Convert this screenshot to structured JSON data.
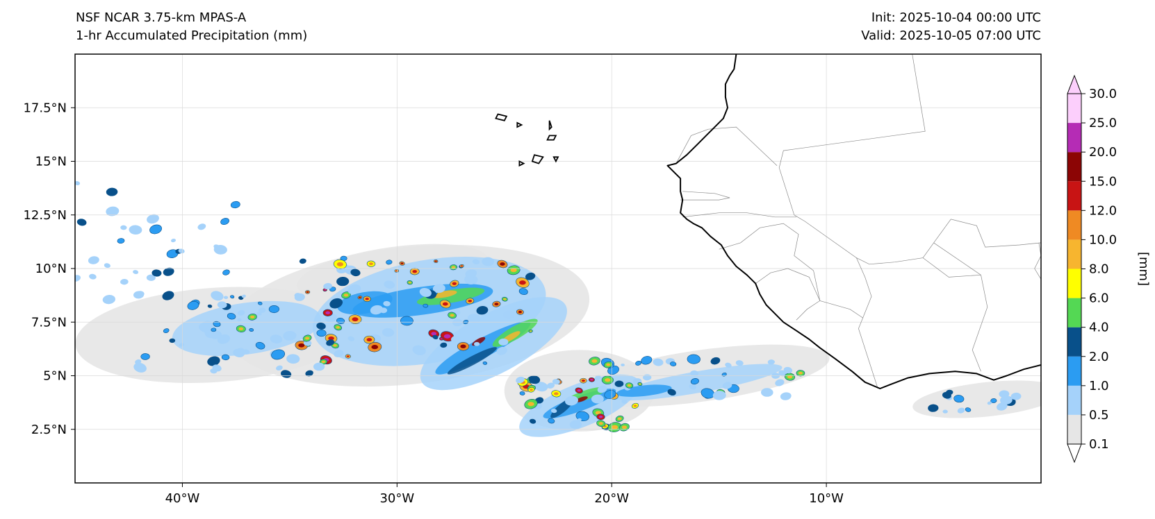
{
  "header": {
    "model": "NSF NCAR 3.75-km MPAS-A",
    "field": "1-hr Accumulated Precipitation (mm)",
    "init": "Init: 2025-10-04 00:00 UTC",
    "valid": "Valid: 2025-10-05 07:00 UTC"
  },
  "map": {
    "lon_range": [
      -45,
      0
    ],
    "lat_range": [
      0,
      20
    ],
    "lon_ticks": [
      {
        "value": -40,
        "label": "40°W"
      },
      {
        "value": -30,
        "label": "30°W"
      },
      {
        "value": -20,
        "label": "20°W"
      },
      {
        "value": -10,
        "label": "10°W"
      }
    ],
    "lat_ticks": [
      {
        "value": 2.5,
        "label": "2.5°N"
      },
      {
        "value": 5,
        "label": "5°N"
      },
      {
        "value": 7.5,
        "label": "7.5°N"
      },
      {
        "value": 10,
        "label": "10°N"
      },
      {
        "value": 12.5,
        "label": "12.5°N"
      },
      {
        "value": 15,
        "label": "15°N"
      },
      {
        "value": 17.5,
        "label": "17.5°N"
      }
    ],
    "coastline": [
      [
        -14.2,
        20
      ],
      [
        -14.3,
        19.3
      ],
      [
        -14.5,
        19
      ],
      [
        -14.7,
        18.6
      ],
      [
        -14.7,
        18
      ],
      [
        -14.6,
        17.5
      ],
      [
        -14.8,
        17
      ],
      [
        -15.2,
        16.6
      ],
      [
        -15.6,
        16.2
      ],
      [
        -16,
        15.8
      ],
      [
        -16.5,
        15.3
      ],
      [
        -17,
        14.9
      ],
      [
        -17.4,
        14.8
      ],
      [
        -17.1,
        14.5
      ],
      [
        -16.8,
        14.2
      ],
      [
        -16.8,
        13.6
      ],
      [
        -16.7,
        13.2
      ],
      [
        -16.8,
        12.6
      ],
      [
        -16.5,
        12.3
      ],
      [
        -16.2,
        12.1
      ],
      [
        -15.8,
        11.9
      ],
      [
        -15.4,
        11.5
      ],
      [
        -14.9,
        11.1
      ],
      [
        -14.6,
        10.6
      ],
      [
        -14.2,
        10.1
      ],
      [
        -13.7,
        9.7
      ],
      [
        -13.3,
        9.3
      ],
      [
        -13.1,
        8.8
      ],
      [
        -12.8,
        8.3
      ],
      [
        -12.4,
        7.9
      ],
      [
        -12,
        7.5
      ],
      [
        -11.4,
        7.1
      ],
      [
        -10.8,
        6.7
      ],
      [
        -10.3,
        6.3
      ],
      [
        -9.6,
        5.8
      ],
      [
        -8.8,
        5.2
      ],
      [
        -8.2,
        4.7
      ],
      [
        -7.5,
        4.4
      ],
      [
        -7,
        4.6
      ],
      [
        -6.2,
        4.9
      ],
      [
        -5.2,
        5.1
      ],
      [
        -4,
        5.2
      ],
      [
        -3,
        5.1
      ],
      [
        -2.2,
        4.8
      ],
      [
        -1.6,
        5
      ],
      [
        -0.8,
        5.3
      ],
      [
        0,
        5.5
      ]
    ],
    "islands": [
      [
        [
          -25.3,
          17.2
        ],
        [
          -24.9,
          17.1
        ],
        [
          -25,
          16.9
        ],
        [
          -25.4,
          17
        ]
      ],
      [
        [
          -24.4,
          16.8
        ],
        [
          -24.2,
          16.7
        ],
        [
          -24.4,
          16.6
        ]
      ],
      [
        [
          -22.9,
          16.9
        ],
        [
          -22.8,
          16.6
        ],
        [
          -22.9,
          16.5
        ]
      ],
      [
        [
          -22.9,
          16.2
        ],
        [
          -22.6,
          16.2
        ],
        [
          -22.7,
          16
        ],
        [
          -23,
          16
        ]
      ],
      [
        [
          -24.3,
          15
        ],
        [
          -24.1,
          14.9
        ],
        [
          -24.3,
          14.8
        ]
      ],
      [
        [
          -23.6,
          15.3
        ],
        [
          -23.2,
          15.2
        ],
        [
          -23.4,
          14.9
        ],
        [
          -23.7,
          15
        ]
      ],
      [
        [
          -22.7,
          15.2
        ],
        [
          -22.5,
          15.2
        ],
        [
          -22.6,
          15
        ]
      ]
    ],
    "borders": [
      [
        [
          -6,
          20
        ],
        [
          -5.4,
          16.4
        ],
        [
          -12,
          15.5
        ],
        [
          -12.2,
          14.7
        ],
        [
          -11.5,
          12.5
        ]
      ],
      [
        [
          -17,
          14.9
        ],
        [
          -16.3,
          16.2
        ],
        [
          -15.5,
          16.5
        ],
        [
          -14.2,
          16.6
        ],
        [
          -12.3,
          14.8
        ]
      ],
      [
        [
          -16.7,
          13.6
        ],
        [
          -15.2,
          13.5
        ],
        [
          -14.5,
          13.3
        ],
        [
          -15,
          13.2
        ],
        [
          -16.8,
          13.2
        ]
      ],
      [
        [
          -16.7,
          12.4
        ],
        [
          -15,
          12.6
        ],
        [
          -13.7,
          12.6
        ],
        [
          -12.4,
          12.4
        ],
        [
          -11.4,
          12.4
        ]
      ],
      [
        [
          -15,
          10.9
        ],
        [
          -14,
          11.2
        ],
        [
          -13.1,
          11.9
        ],
        [
          -12,
          12.1
        ],
        [
          -11.3,
          11.6
        ],
        [
          -11.5,
          10.6
        ],
        [
          -10.6,
          9.9
        ],
        [
          -10.3,
          8.5
        ],
        [
          -10.9,
          8.1
        ],
        [
          -11.4,
          7.6
        ]
      ],
      [
        [
          -13.3,
          9.3
        ],
        [
          -12.6,
          9.8
        ],
        [
          -11.8,
          10
        ],
        [
          -10.8,
          9.6
        ],
        [
          -10.3,
          8.5
        ]
      ],
      [
        [
          -10.3,
          8.5
        ],
        [
          -8.9,
          8.1
        ],
        [
          -8.3,
          7.7
        ],
        [
          -8.5,
          7.2
        ],
        [
          -7.6,
          4.4
        ]
      ],
      [
        [
          -8.6,
          10.5
        ],
        [
          -8,
          10.2
        ],
        [
          -6.8,
          10.3
        ],
        [
          -5.5,
          10.5
        ],
        [
          -5,
          11.2
        ],
        [
          -4.2,
          12.3
        ],
        [
          -3,
          12
        ],
        [
          -2.6,
          11
        ],
        [
          -1,
          11.1
        ],
        [
          0,
          11.2
        ]
      ],
      [
        [
          -11.5,
          12.5
        ],
        [
          -11,
          12.2
        ],
        [
          -8.6,
          10.5
        ],
        [
          -8.2,
          9.6
        ],
        [
          -7.9,
          8.7
        ],
        [
          -8.3,
          7.7
        ]
      ],
      [
        [
          -5,
          11.2
        ],
        [
          -2.8,
          9.7
        ],
        [
          -2.5,
          8.2
        ],
        [
          -3.2,
          6.2
        ],
        [
          -2.8,
          5.2
        ]
      ],
      [
        [
          -0.1,
          11.2
        ],
        [
          0,
          10.6
        ],
        [
          -0.3,
          10
        ],
        [
          0,
          9.5
        ]
      ],
      [
        [
          -5.5,
          10.5
        ],
        [
          -4.3,
          9.6
        ],
        [
          -2.8,
          9.7
        ]
      ]
    ],
    "rain_bands": [
      {
        "lon": -29.5,
        "lat": 7.8,
        "rx": 8.5,
        "ry": 3.2,
        "rot": -6,
        "level": 0
      },
      {
        "lon": -38.5,
        "lat": 6.9,
        "rx": 6.5,
        "ry": 2.2,
        "rot": -4,
        "level": 0
      },
      {
        "lon": -21.5,
        "lat": 4.3,
        "rx": 3.5,
        "ry": 1.9,
        "rot": 0,
        "level": 0
      },
      {
        "lon": -15.8,
        "lat": 5,
        "rx": 6,
        "ry": 1.2,
        "rot": -8,
        "level": 0
      },
      {
        "lon": -30.2,
        "lat": 9.8,
        "rx": 4.5,
        "ry": 1.2,
        "rot": -8,
        "level": 0
      },
      {
        "lon": -2.5,
        "lat": 3.9,
        "rx": 3.5,
        "ry": 0.8,
        "rot": -6,
        "level": 0
      },
      {
        "lon": -28.5,
        "lat": 8,
        "rx": 5.5,
        "ry": 2.4,
        "rot": -10,
        "level": 1
      },
      {
        "lon": -25.5,
        "lat": 6.5,
        "rx": 3.8,
        "ry": 1.4,
        "rot": -28,
        "level": 1
      },
      {
        "lon": -21.5,
        "lat": 3.6,
        "rx": 3,
        "ry": 1,
        "rot": -22,
        "level": 1
      },
      {
        "lon": -37,
        "lat": 7.2,
        "rx": 3.5,
        "ry": 1.2,
        "rot": -8,
        "level": 1
      },
      {
        "lon": -16,
        "lat": 4.7,
        "rx": 4,
        "ry": 0.5,
        "rot": -10,
        "level": 1
      },
      {
        "lon": -28.8,
        "lat": 8.5,
        "rx": 3.3,
        "ry": 0.65,
        "rot": -8,
        "level": 2
      },
      {
        "lon": -26,
        "lat": 6.3,
        "rx": 2.5,
        "ry": 0.45,
        "rot": -28,
        "level": 2
      },
      {
        "lon": -21.5,
        "lat": 3.7,
        "rx": 1.8,
        "ry": 0.35,
        "rot": -20,
        "level": 2
      },
      {
        "lon": -18.5,
        "lat": 4.3,
        "rx": 1.3,
        "ry": 0.25,
        "rot": -6,
        "level": 2
      },
      {
        "lon": -31.5,
        "lat": 8.4,
        "rx": 1.3,
        "ry": 0.5,
        "rot": -10,
        "level": 2
      },
      {
        "lon": -27.5,
        "lat": 8.7,
        "rx": 1.6,
        "ry": 0.3,
        "rot": -10,
        "level": 4
      },
      {
        "lon": -24.5,
        "lat": 7,
        "rx": 1.2,
        "ry": 0.3,
        "rot": -30,
        "level": 4
      },
      {
        "lon": -26.5,
        "lat": 5.7,
        "rx": 1.3,
        "ry": 0.2,
        "rot": -28,
        "level": 3
      },
      {
        "lon": -21.2,
        "lat": 4.1,
        "rx": 1,
        "ry": 0.22,
        "rot": -18,
        "level": 4
      },
      {
        "lon": -22.3,
        "lat": 3.5,
        "rx": 0.7,
        "ry": 0.2,
        "rot": -40,
        "level": 3
      },
      {
        "lon": -27.8,
        "lat": 8.8,
        "rx": 0.6,
        "ry": 0.15,
        "rot": -10,
        "level": 6
      },
      {
        "lon": -24.7,
        "lat": 6.8,
        "rx": 0.5,
        "ry": 0.14,
        "rot": -30,
        "level": 6
      },
      {
        "lon": -26.2,
        "lat": 6.6,
        "rx": 0.35,
        "ry": 0.12,
        "rot": -30,
        "level": 9
      },
      {
        "lon": -21.4,
        "lat": 3.9,
        "rx": 0.3,
        "ry": 0.1,
        "rot": -20,
        "level": 9
      }
    ],
    "seed": 20251005,
    "colorbar": {
      "label": "[mm]",
      "levels": [
        "0.1",
        "0.5",
        "1.0",
        "2.0",
        "4.0",
        "6.0",
        "8.0",
        "10.0",
        "12.0",
        "15.0",
        "20.0",
        "25.0",
        "30.0"
      ],
      "colors": [
        "#e6e6e6",
        "#a5d2fa",
        "#2b9cf2",
        "#08508a",
        "#54d854",
        "#ffff00",
        "#f7b52f",
        "#ef8a23",
        "#c81414",
        "#8c0505",
        "#b52cb5",
        "#fccffc"
      ]
    }
  }
}
